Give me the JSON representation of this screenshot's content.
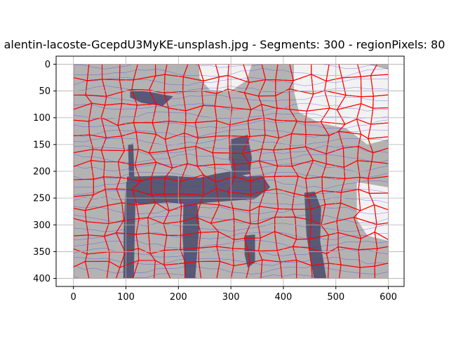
{
  "chart_data": {
    "type": "heatmap",
    "title": "alentin-lacoste-GcepdU3MyKE-unsplash.jpg - Segments: 300 - regionPixels: 80",
    "xlabel": "",
    "ylabel": "",
    "xlim": [
      -33,
      630
    ],
    "ylim": [
      415,
      -15
    ],
    "image_extent": {
      "width": 600,
      "height": 400
    },
    "x_ticks": [
      0,
      100,
      200,
      300,
      400,
      500,
      600
    ],
    "y_ticks": [
      0,
      50,
      100,
      150,
      200,
      250,
      300,
      350,
      400
    ],
    "grid": true,
    "segments": 300,
    "colors": {
      "segment_fill": "#b3b3b3",
      "light_fill": "#f2f2f2",
      "dark_fill": "#595973",
      "boundary": "#ff0000",
      "contour": "#3333ff",
      "grid": "#b0b0b0"
    },
    "dark_regions": [
      {
        "name": "top-left-blob",
        "points": [
          [
            108,
            48
          ],
          [
            145,
            52
          ],
          [
            190,
            60
          ],
          [
            170,
            78
          ],
          [
            130,
            72
          ],
          [
            108,
            62
          ]
        ]
      },
      {
        "name": "left-post",
        "points": [
          [
            100,
            220
          ],
          [
            112,
            218
          ],
          [
            118,
            260
          ],
          [
            115,
            400
          ],
          [
            95,
            400
          ],
          [
            96,
            300
          ]
        ]
      },
      {
        "name": "left-vertical",
        "points": [
          [
            104,
            150
          ],
          [
            114,
            148
          ],
          [
            116,
            210
          ],
          [
            106,
            215
          ]
        ]
      },
      {
        "name": "center-band",
        "points": [
          [
            102,
            210
          ],
          [
            180,
            208
          ],
          [
            240,
            212
          ],
          [
            270,
            205
          ],
          [
            300,
            200
          ],
          [
            330,
            210
          ],
          [
            360,
            208
          ],
          [
            375,
            230
          ],
          [
            345,
            252
          ],
          [
            300,
            255
          ],
          [
            260,
            258
          ],
          [
            220,
            262
          ],
          [
            180,
            258
          ],
          [
            130,
            262
          ],
          [
            102,
            256
          ]
        ]
      },
      {
        "name": "center-column",
        "points": [
          [
            300,
            140
          ],
          [
            332,
            132
          ],
          [
            340,
            175
          ],
          [
            336,
            205
          ],
          [
            305,
            210
          ],
          [
            296,
            175
          ]
        ]
      },
      {
        "name": "right-posts",
        "points": [
          [
            440,
            240
          ],
          [
            460,
            238
          ],
          [
            472,
            270
          ],
          [
            470,
            330
          ],
          [
            482,
            400
          ],
          [
            458,
            400
          ],
          [
            444,
            320
          ]
        ]
      },
      {
        "name": "leg-left",
        "points": [
          [
            210,
            250
          ],
          [
            235,
            250
          ],
          [
            240,
            300
          ],
          [
            232,
            400
          ],
          [
            212,
            400
          ],
          [
            208,
            320
          ]
        ]
      },
      {
        "name": "small-leg",
        "points": [
          [
            326,
            320
          ],
          [
            346,
            318
          ],
          [
            346,
            370
          ],
          [
            332,
            380
          ],
          [
            326,
            355
          ]
        ]
      }
    ],
    "light_regions": [
      {
        "name": "top-right-sky",
        "points": [
          [
            240,
            0
          ],
          [
            340,
            0
          ],
          [
            330,
            30
          ],
          [
            300,
            50
          ],
          [
            260,
            48
          ],
          [
            240,
            25
          ]
        ]
      },
      {
        "name": "top-right-sky-2",
        "points": [
          [
            420,
            0
          ],
          [
            560,
            0
          ],
          [
            600,
            10
          ],
          [
            600,
            140
          ],
          [
            560,
            150
          ],
          [
            520,
            120
          ],
          [
            470,
            110
          ],
          [
            430,
            90
          ],
          [
            420,
            50
          ]
        ]
      },
      {
        "name": "right-mid",
        "points": [
          [
            540,
            220
          ],
          [
            600,
            230
          ],
          [
            600,
            330
          ],
          [
            560,
            320
          ],
          [
            540,
            290
          ]
        ]
      }
    ]
  }
}
